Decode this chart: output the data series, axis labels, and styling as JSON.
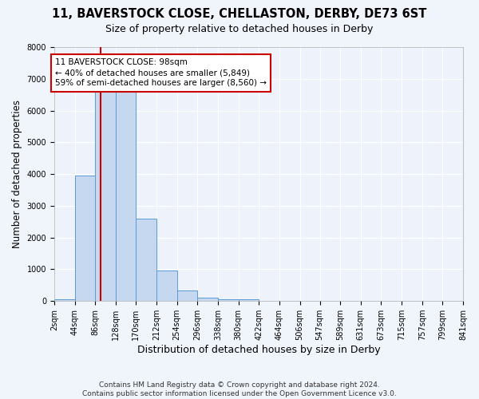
{
  "title1": "11, BAVERSTOCK CLOSE, CHELLASTON, DERBY, DE73 6ST",
  "title2": "Size of property relative to detached houses in Derby",
  "xlabel": "Distribution of detached houses by size in Derby",
  "ylabel": "Number of detached properties",
  "footnote": "Contains HM Land Registry data © Crown copyright and database right 2024.\nContains public sector information licensed under the Open Government Licence v3.0.",
  "bin_edges": [
    2,
    44,
    86,
    128,
    170,
    212,
    254,
    296,
    338,
    380,
    422,
    464,
    506,
    547,
    589,
    631,
    673,
    715,
    757,
    799,
    841
  ],
  "bar_heights": [
    50,
    3950,
    6600,
    6600,
    2600,
    950,
    330,
    100,
    50,
    50,
    0,
    0,
    0,
    0,
    0,
    0,
    0,
    0,
    0,
    0
  ],
  "bar_color": "#c5d8ef",
  "bar_edge_color": "#5b9bd5",
  "property_size": 98,
  "property_line_color": "#cc0000",
  "annotation_text": "11 BAVERSTOCK CLOSE: 98sqm\n← 40% of detached houses are smaller (5,849)\n59% of semi-detached houses are larger (8,560) →",
  "annotation_box_color": "#cc0000",
  "background_color": "#f0f4fb",
  "plot_background": "#edf2fb",
  "ylim": [
    0,
    8000
  ],
  "yticks": [
    0,
    1000,
    2000,
    3000,
    4000,
    5000,
    6000,
    7000,
    8000
  ],
  "title1_fontsize": 10.5,
  "title2_fontsize": 9,
  "tick_label_fontsize": 7,
  "ylabel_fontsize": 8.5,
  "xlabel_fontsize": 9,
  "footnote_fontsize": 6.5
}
